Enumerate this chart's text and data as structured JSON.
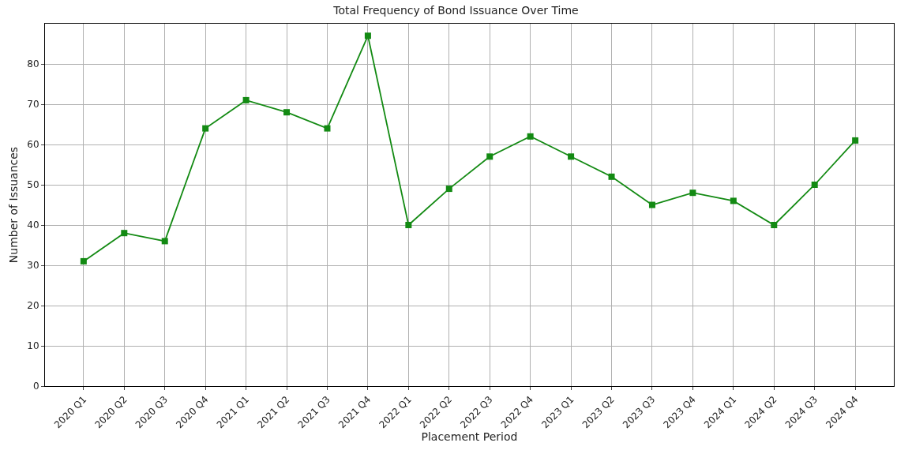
{
  "chart_data": {
    "type": "line",
    "title": "Total Frequency of Bond Issuance Over Time",
    "xlabel": "Placement Period",
    "ylabel": "Number of Issuances",
    "categories": [
      "2020 Q1",
      "2020 Q2",
      "2020 Q3",
      "2020 Q4",
      "2021 Q1",
      "2021 Q2",
      "2021 Q3",
      "2021 Q4",
      "2022 Q1",
      "2022 Q2",
      "2022 Q3",
      "2022 Q4",
      "2023 Q1",
      "2023 Q2",
      "2023 Q3",
      "2023 Q4",
      "2024 Q1",
      "2024 Q2",
      "2024 Q3",
      "2024 Q4"
    ],
    "series": [
      {
        "color": "#138a13",
        "values": [
          31,
          38,
          36,
          64,
          71,
          68,
          64,
          87,
          40,
          49,
          57,
          62,
          57,
          52,
          45,
          48,
          46,
          40,
          50,
          61
        ]
      }
    ],
    "ylim": [
      0,
      90
    ],
    "yticks": [
      0,
      10,
      20,
      30,
      40,
      50,
      60,
      70,
      80
    ],
    "grid": true,
    "marker": "square",
    "line_style": "solid"
  }
}
